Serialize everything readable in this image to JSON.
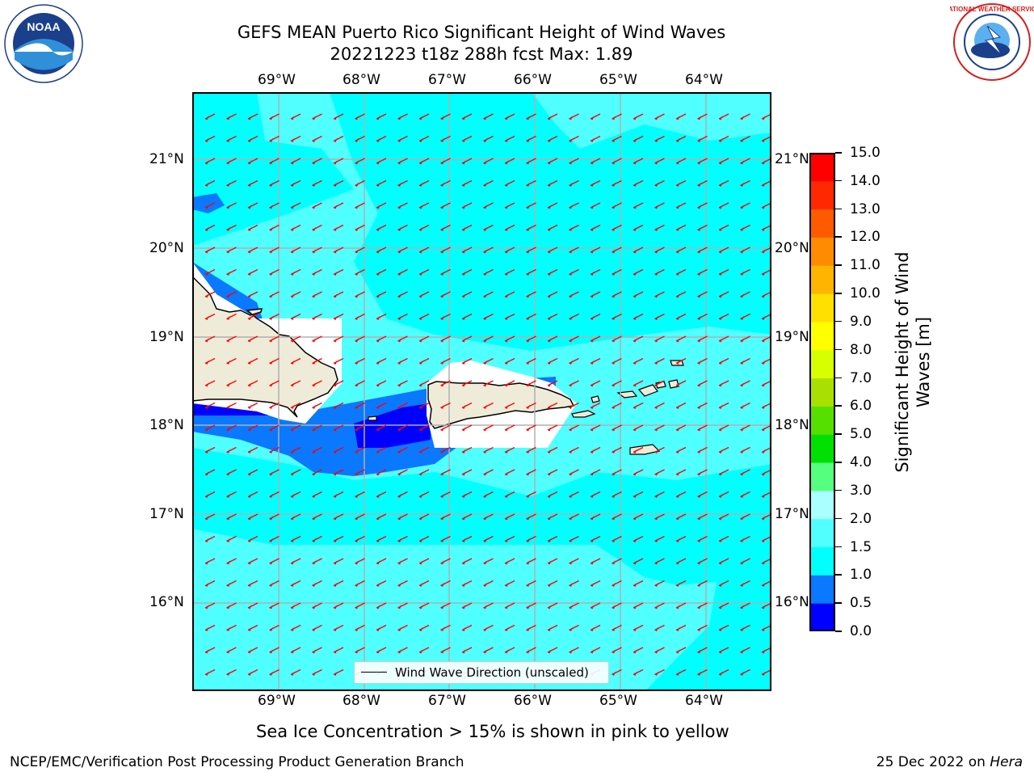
{
  "header": {
    "title_line1": "GEFS MEAN Puerto Rico Significant Height of Wind Waves",
    "title_line2": "20221223 t18z 288h fcst   Max: 1.89"
  },
  "logos": {
    "noaa_text": "NOAA",
    "noaa_ring_text": "NATIONAL OCEANIC AND ATMOSPHERIC ADMINISTRATION · U.S. DEPARTMENT OF COMMERCE",
    "nws_ring_text": "NATIONAL WEATHER SERVICE"
  },
  "map": {
    "lon_labels": [
      "69°W",
      "68°W",
      "67°W",
      "66°W",
      "65°W",
      "64°W"
    ],
    "lat_labels": [
      "21°N",
      "20°N",
      "19°N",
      "18°N",
      "17°N",
      "16°N"
    ],
    "legend_label": "Wind Wave Direction (unscaled)",
    "arrow_color": "#ff0000",
    "land_color": "#efebd9"
  },
  "colorbar": {
    "label_line1": "Significant Height of Wind",
    "label_line2": "Waves [m]",
    "ticks": [
      "0.0",
      "0.5",
      "1.0",
      "1.5",
      "2.0",
      "3.0",
      "4.0",
      "5.0",
      "6.0",
      "7.0",
      "8.0",
      "9.0",
      "10.0",
      "11.0",
      "12.0",
      "13.0",
      "14.0",
      "15.0"
    ],
    "colors": [
      "#0000ff",
      "#0a78ff",
      "#00ffff",
      "#50ffff",
      "#aaffff",
      "#55ff80",
      "#00e000",
      "#55e000",
      "#aae000",
      "#d8ff00",
      "#ffff00",
      "#ffe000",
      "#ffb400",
      "#ff8c00",
      "#ff5a00",
      "#ff2800",
      "#ff0000"
    ]
  },
  "footer": {
    "note": "Sea Ice Concentration > 15% is shown in pink to yellow",
    "left": "NCEP/EMC/Verification Post Processing Product Generation Branch",
    "right_date": "25 Dec 2022 on ",
    "right_machine": "Hera"
  }
}
